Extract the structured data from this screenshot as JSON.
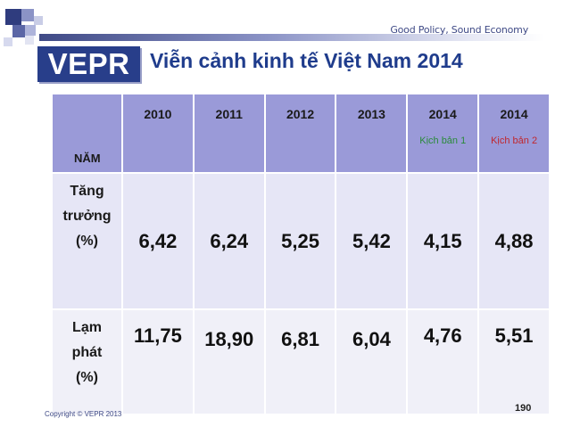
{
  "header": {
    "tagline": "Good Policy, Sound Economy",
    "logo_text": "VEPR",
    "title": "Viễn cảnh kinh tế Việt Nam 2014"
  },
  "table": {
    "corner_label": "NĂM",
    "columns": [
      {
        "year": "2010",
        "scenario": ""
      },
      {
        "year": "2011",
        "scenario": ""
      },
      {
        "year": "2012",
        "scenario": ""
      },
      {
        "year": "2013",
        "scenario": ""
      },
      {
        "year": "2014",
        "scenario": "Kịch bản 1"
      },
      {
        "year": "2014",
        "scenario": "Kịch bản 2"
      }
    ],
    "rows": [
      {
        "label_lines": [
          "Tăng",
          "trưởng",
          "(%)"
        ],
        "values": [
          "6,42",
          "6,24",
          "5,25",
          "5,42",
          "4,15",
          "4,88"
        ]
      },
      {
        "label_lines": [
          "Lạm",
          "phát",
          "(%)"
        ],
        "values": [
          "11,75",
          "18,90",
          "6,81",
          "6,04",
          "4,76",
          "5,51"
        ]
      }
    ],
    "scenario_colors": {
      "scenario_1": "#2a8a3a",
      "scenario_2": "#c0272d"
    }
  },
  "footer": {
    "copyright": "Copyright © VEPR 2013",
    "page_number": "190"
  }
}
